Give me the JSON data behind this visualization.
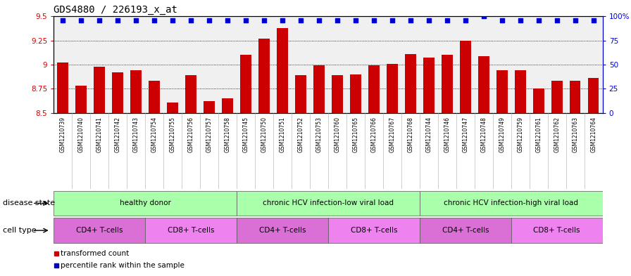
{
  "title": "GDS4880 / 226193_x_at",
  "samples": [
    "GSM1210739",
    "GSM1210740",
    "GSM1210741",
    "GSM1210742",
    "GSM1210743",
    "GSM1210754",
    "GSM1210755",
    "GSM1210756",
    "GSM1210757",
    "GSM1210758",
    "GSM1210745",
    "GSM1210750",
    "GSM1210751",
    "GSM1210752",
    "GSM1210753",
    "GSM1210760",
    "GSM1210765",
    "GSM1210766",
    "GSM1210767",
    "GSM1210768",
    "GSM1210744",
    "GSM1210746",
    "GSM1210747",
    "GSM1210748",
    "GSM1210749",
    "GSM1210759",
    "GSM1210761",
    "GSM1210762",
    "GSM1210763",
    "GSM1210764"
  ],
  "bar_values": [
    9.02,
    8.78,
    8.98,
    8.92,
    8.94,
    8.83,
    8.61,
    8.89,
    8.62,
    8.65,
    9.1,
    9.27,
    9.38,
    8.89,
    8.99,
    8.89,
    8.9,
    8.99,
    9.01,
    9.11,
    9.07,
    9.1,
    9.25,
    9.09,
    8.94,
    8.94,
    8.75,
    8.83,
    8.83,
    8.86
  ],
  "percentile_values": [
    96,
    96,
    96,
    96,
    96,
    96,
    96,
    96,
    96,
    96,
    96,
    96,
    96,
    96,
    96,
    96,
    96,
    96,
    96,
    96,
    96,
    96,
    96,
    100,
    96,
    96,
    96,
    96,
    96,
    96
  ],
  "ylim_left": [
    8.5,
    9.5
  ],
  "ylim_right": [
    0,
    100
  ],
  "yticks_left": [
    8.5,
    8.75,
    9.0,
    9.25,
    9.5
  ],
  "ytick_labels_left": [
    "8.5",
    "8.75",
    "9",
    "9.25",
    "9.5"
  ],
  "yticks_right": [
    0,
    25,
    50,
    75,
    100
  ],
  "ytick_labels_right": [
    "0",
    "25",
    "50",
    "75",
    "100%"
  ],
  "bar_color": "#cc0000",
  "dot_color": "#0000cc",
  "background_color": "#d8d8d8",
  "plot_bg_color": "#f0f0f0",
  "disease_state_groups": [
    {
      "label": "healthy donor",
      "start": 0,
      "end": 9
    },
    {
      "label": "chronic HCV infection-low viral load",
      "start": 10,
      "end": 19
    },
    {
      "label": "chronic HCV infection-high viral load",
      "start": 20,
      "end": 29
    }
  ],
  "cell_type_groups": [
    {
      "label": "CD4+ T-cells",
      "start": 0,
      "end": 4
    },
    {
      "label": "CD8+ T-cells",
      "start": 5,
      "end": 9
    },
    {
      "label": "CD4+ T-cells",
      "start": 10,
      "end": 14
    },
    {
      "label": "CD8+ T-cells",
      "start": 15,
      "end": 19
    },
    {
      "label": "CD4+ T-cells",
      "start": 20,
      "end": 24
    },
    {
      "label": "CD8+ T-cells",
      "start": 25,
      "end": 29
    }
  ],
  "disease_state_label": "disease state",
  "cell_type_label": "cell type",
  "legend_items": [
    {
      "label": "transformed count",
      "color": "#cc0000"
    },
    {
      "label": "percentile rank within the sample",
      "color": "#0000cc"
    }
  ],
  "ds_color": "#aaffaa",
  "ct_cd4_color": "#da70d6",
  "ct_cd8_color": "#ee82ee",
  "title_fontsize": 10,
  "tick_fontsize": 7.5,
  "xtick_fontsize": 5.5,
  "label_fontsize": 8,
  "row_fontsize": 7.5
}
